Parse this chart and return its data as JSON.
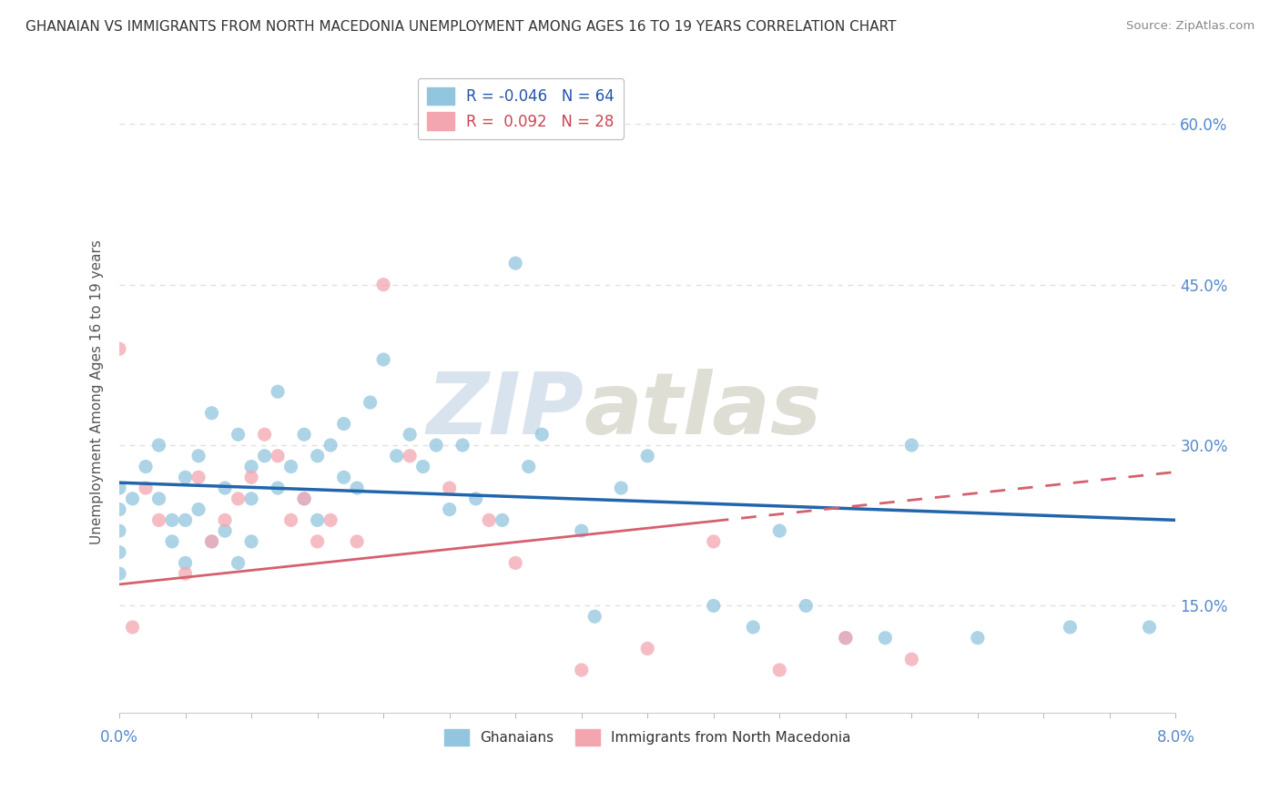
{
  "title": "GHANAIAN VS IMMIGRANTS FROM NORTH MACEDONIA UNEMPLOYMENT AMONG AGES 16 TO 19 YEARS CORRELATION CHART",
  "source": "Source: ZipAtlas.com",
  "ylabel": "Unemployment Among Ages 16 to 19 years",
  "xlim": [
    0.0,
    8.0
  ],
  "ylim": [
    5.0,
    65.0
  ],
  "yticks": [
    15.0,
    30.0,
    45.0,
    60.0
  ],
  "ytick_labels": [
    "15.0%",
    "30.0%",
    "45.0%",
    "60.0%"
  ],
  "legend_blue_R": "-0.046",
  "legend_blue_N": "64",
  "legend_pink_R": "0.092",
  "legend_pink_N": "28",
  "blue_color": "#92c5de",
  "pink_color": "#f4a6b0",
  "blue_line_color": "#2166ac",
  "pink_line_color": "#d6606d",
  "watermark_zip": "ZIP",
  "watermark_atlas": "atlas",
  "blue_scatter_x": [
    0.0,
    0.0,
    0.0,
    0.0,
    0.0,
    0.1,
    0.2,
    0.3,
    0.3,
    0.4,
    0.4,
    0.5,
    0.5,
    0.5,
    0.6,
    0.6,
    0.7,
    0.7,
    0.8,
    0.8,
    0.9,
    0.9,
    1.0,
    1.0,
    1.0,
    1.1,
    1.2,
    1.2,
    1.3,
    1.4,
    1.4,
    1.5,
    1.5,
    1.6,
    1.7,
    1.7,
    1.8,
    1.9,
    2.0,
    2.1,
    2.2,
    2.3,
    2.4,
    2.5,
    2.6,
    2.7,
    2.9,
    3.0,
    3.1,
    3.2,
    3.5,
    3.6,
    3.8,
    4.0,
    4.5,
    4.8,
    5.0,
    5.2,
    5.5,
    5.8,
    6.0,
    6.5,
    7.2,
    7.8
  ],
  "blue_scatter_y": [
    26.0,
    24.0,
    22.0,
    20.0,
    18.0,
    25.0,
    28.0,
    30.0,
    25.0,
    23.0,
    21.0,
    27.0,
    23.0,
    19.0,
    29.0,
    24.0,
    33.0,
    21.0,
    26.0,
    22.0,
    31.0,
    19.0,
    28.0,
    25.0,
    21.0,
    29.0,
    35.0,
    26.0,
    28.0,
    31.0,
    25.0,
    29.0,
    23.0,
    30.0,
    32.0,
    27.0,
    26.0,
    34.0,
    38.0,
    29.0,
    31.0,
    28.0,
    30.0,
    24.0,
    30.0,
    25.0,
    23.0,
    47.0,
    28.0,
    31.0,
    22.0,
    14.0,
    26.0,
    29.0,
    15.0,
    13.0,
    22.0,
    15.0,
    12.0,
    12.0,
    30.0,
    12.0,
    13.0,
    13.0
  ],
  "pink_scatter_x": [
    0.0,
    0.1,
    0.2,
    0.3,
    0.5,
    0.6,
    0.7,
    0.8,
    0.9,
    1.0,
    1.1,
    1.2,
    1.3,
    1.4,
    1.5,
    1.6,
    1.8,
    2.0,
    2.2,
    2.5,
    2.8,
    3.0,
    3.5,
    4.0,
    4.5,
    5.0,
    5.5,
    6.0
  ],
  "pink_scatter_y": [
    39.0,
    13.0,
    26.0,
    23.0,
    18.0,
    27.0,
    21.0,
    23.0,
    25.0,
    27.0,
    31.0,
    29.0,
    23.0,
    25.0,
    21.0,
    23.0,
    21.0,
    45.0,
    29.0,
    26.0,
    23.0,
    19.0,
    9.0,
    11.0,
    21.0,
    9.0,
    12.0,
    10.0
  ],
  "blue_line_x0": 0.0,
  "blue_line_y0": 26.5,
  "blue_line_x1": 8.0,
  "blue_line_y1": 23.0,
  "pink_line_x0": 0.0,
  "pink_line_y0": 17.0,
  "pink_line_x1": 8.0,
  "pink_line_y1": 27.5,
  "pink_solid_end_x": 4.5,
  "background_color": "#ffffff",
  "grid_color": "#e0e0e0"
}
